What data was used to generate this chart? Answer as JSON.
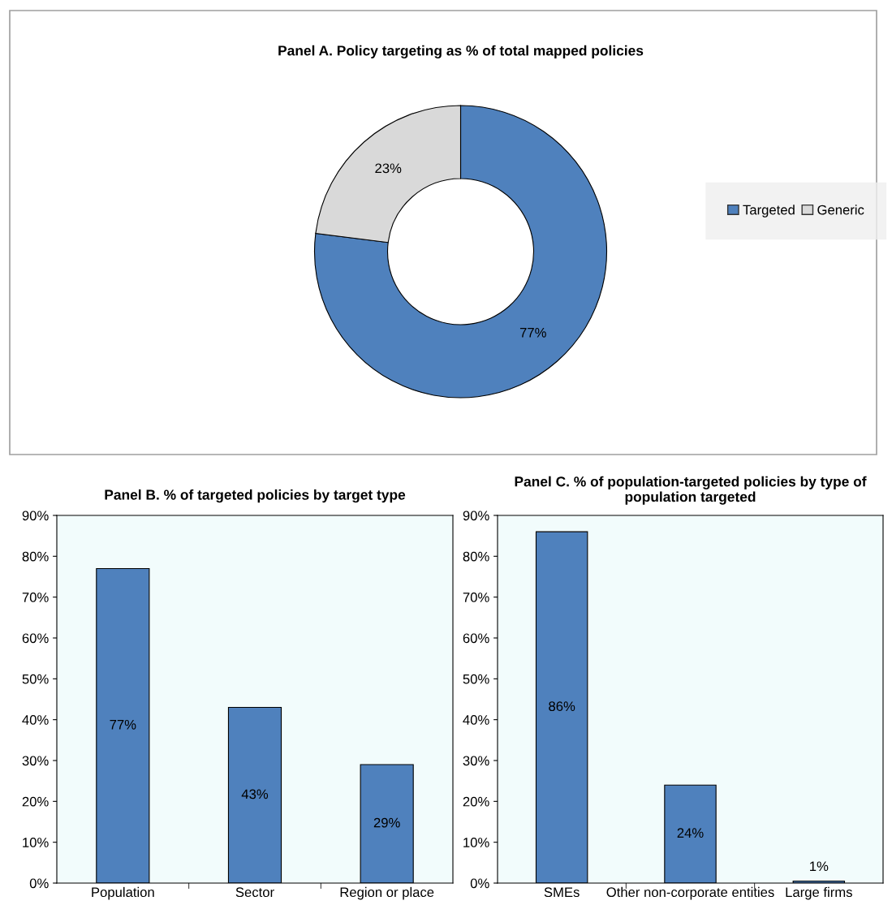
{
  "chart_data": [
    {
      "type": "donut",
      "title": "Panel A. Policy targeting as % of total mapped policies",
      "categories": [
        "Targeted",
        "Generic"
      ],
      "values": [
        77,
        23
      ],
      "colors": [
        "#4f81bd",
        "#d9d9d9"
      ],
      "value_labels": [
        "77%",
        "23%"
      ],
      "legend": "right"
    },
    {
      "type": "bar",
      "title": "Panel B. % of targeted policies by target type",
      "categories": [
        "Population",
        "Sector",
        "Region or place"
      ],
      "values": [
        77,
        43,
        29
      ],
      "value_labels": [
        "77%",
        "43%",
        "29%"
      ],
      "color": "#4f81bd",
      "ylim": [
        0,
        90
      ],
      "yticks": [
        {
          "value": 0,
          "label": "0%"
        },
        {
          "value": 10,
          "label": "10%"
        },
        {
          "value": 20,
          "label": "20%"
        },
        {
          "value": 30,
          "label": "30%"
        },
        {
          "value": 40,
          "label": "40%"
        },
        {
          "value": 50,
          "label": "50%"
        },
        {
          "value": 60,
          "label": "60%"
        },
        {
          "value": 70,
          "label": "70%"
        },
        {
          "value": 80,
          "label": "80%"
        },
        {
          "value": 90,
          "label": "90%"
        }
      ],
      "grid": false,
      "legend": false
    },
    {
      "type": "bar",
      "title": "Panel C. % of population-targeted policies by type of population targeted",
      "categories": [
        "SMEs",
        "Other non-corporate entities",
        "Large firms"
      ],
      "values": [
        86,
        24,
        0.5
      ],
      "value_labels": [
        "86%",
        "24%",
        "1%"
      ],
      "color": "#4f81bd",
      "ylim": [
        0,
        90
      ],
      "yticks": [
        {
          "value": 0,
          "label": "0%"
        },
        {
          "value": 10,
          "label": "10%"
        },
        {
          "value": 20,
          "label": "20%"
        },
        {
          "value": 30,
          "label": "30%"
        },
        {
          "value": 40,
          "label": "40%"
        },
        {
          "value": 50,
          "label": "50%"
        },
        {
          "value": 60,
          "label": "60%"
        },
        {
          "value": 70,
          "label": "70%"
        },
        {
          "value": 80,
          "label": "80%"
        },
        {
          "value": 90,
          "label": "90%"
        }
      ],
      "grid": false,
      "legend": false
    }
  ]
}
